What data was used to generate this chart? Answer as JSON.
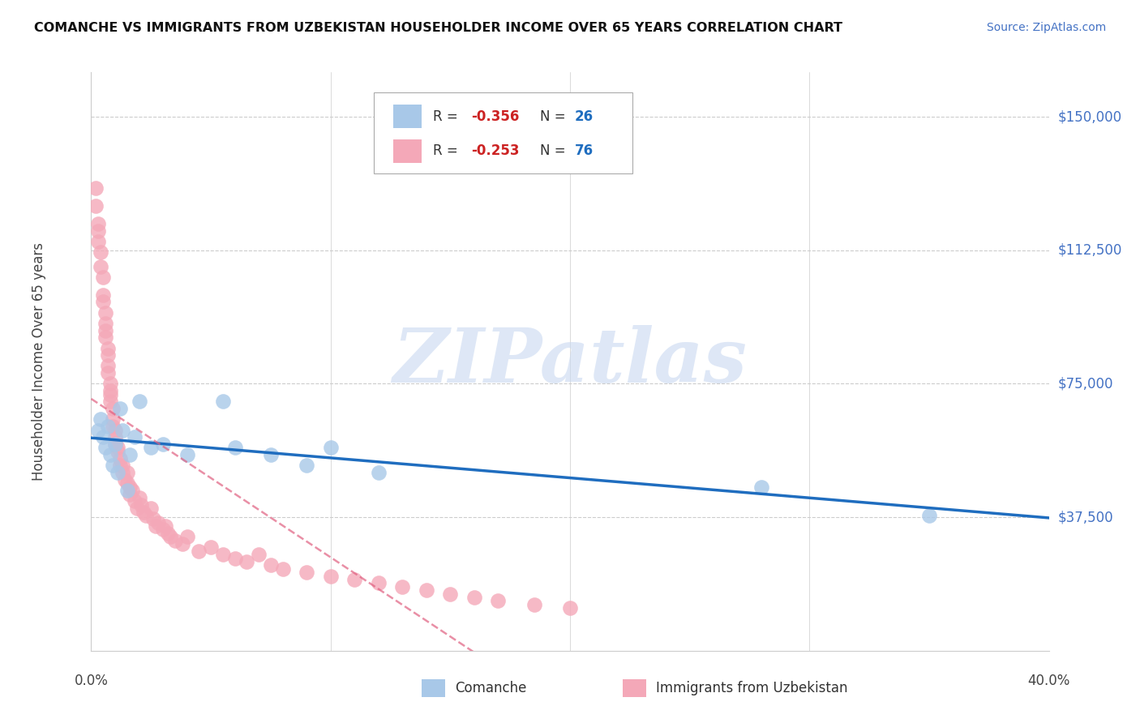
{
  "title": "COMANCHE VS IMMIGRANTS FROM UZBEKISTAN HOUSEHOLDER INCOME OVER 65 YEARS CORRELATION CHART",
  "source": "Source: ZipAtlas.com",
  "ylabel": "Householder Income Over 65 years",
  "y_tick_labels": [
    "$37,500",
    "$75,000",
    "$112,500",
    "$150,000"
  ],
  "y_tick_values": [
    37500,
    75000,
    112500,
    150000
  ],
  "x_lim": [
    0.0,
    0.4
  ],
  "y_lim": [
    0,
    162500
  ],
  "watermark": "ZIPatlas",
  "watermark_color": "#c8d8f0",
  "blue_dot_color": "#a8c8e8",
  "pink_dot_color": "#f4a8b8",
  "blue_line_color": "#1f6dbf",
  "pink_line_color": "#e06080",
  "blue_R": "-0.356",
  "blue_N": "26",
  "pink_R": "-0.253",
  "pink_N": "76",
  "comanche_x": [
    0.003,
    0.004,
    0.005,
    0.006,
    0.007,
    0.008,
    0.009,
    0.01,
    0.011,
    0.012,
    0.013,
    0.015,
    0.016,
    0.018,
    0.02,
    0.025,
    0.03,
    0.04,
    0.055,
    0.06,
    0.075,
    0.09,
    0.1,
    0.12,
    0.28,
    0.35
  ],
  "comanche_y": [
    62000,
    65000,
    60000,
    57000,
    63000,
    55000,
    52000,
    58000,
    50000,
    68000,
    62000,
    45000,
    55000,
    60000,
    70000,
    57000,
    58000,
    55000,
    70000,
    57000,
    55000,
    52000,
    57000,
    50000,
    46000,
    38000
  ],
  "uzbekistan_x": [
    0.002,
    0.002,
    0.003,
    0.003,
    0.003,
    0.004,
    0.004,
    0.005,
    0.005,
    0.005,
    0.006,
    0.006,
    0.006,
    0.006,
    0.007,
    0.007,
    0.007,
    0.007,
    0.008,
    0.008,
    0.008,
    0.008,
    0.009,
    0.009,
    0.009,
    0.01,
    0.01,
    0.01,
    0.011,
    0.011,
    0.012,
    0.012,
    0.013,
    0.013,
    0.014,
    0.015,
    0.015,
    0.016,
    0.016,
    0.017,
    0.018,
    0.019,
    0.02,
    0.021,
    0.022,
    0.023,
    0.025,
    0.026,
    0.027,
    0.028,
    0.03,
    0.031,
    0.032,
    0.033,
    0.035,
    0.038,
    0.04,
    0.045,
    0.05,
    0.055,
    0.06,
    0.065,
    0.07,
    0.075,
    0.08,
    0.09,
    0.1,
    0.11,
    0.12,
    0.13,
    0.14,
    0.15,
    0.16,
    0.17,
    0.185,
    0.2
  ],
  "uzbekistan_y": [
    130000,
    125000,
    120000,
    118000,
    115000,
    112000,
    108000,
    105000,
    100000,
    98000,
    95000,
    92000,
    90000,
    88000,
    85000,
    83000,
    80000,
    78000,
    75000,
    73000,
    70000,
    72000,
    68000,
    65000,
    63000,
    62000,
    60000,
    58000,
    57000,
    56000,
    54000,
    52000,
    50000,
    52000,
    48000,
    50000,
    47000,
    46000,
    44000,
    45000,
    42000,
    40000,
    43000,
    41000,
    39000,
    38000,
    40000,
    37000,
    35000,
    36000,
    34000,
    35000,
    33000,
    32000,
    31000,
    30000,
    32000,
    28000,
    29000,
    27000,
    26000,
    25000,
    27000,
    24000,
    23000,
    22000,
    21000,
    20000,
    19000,
    18000,
    17000,
    16000,
    15000,
    14000,
    13000,
    12000
  ]
}
